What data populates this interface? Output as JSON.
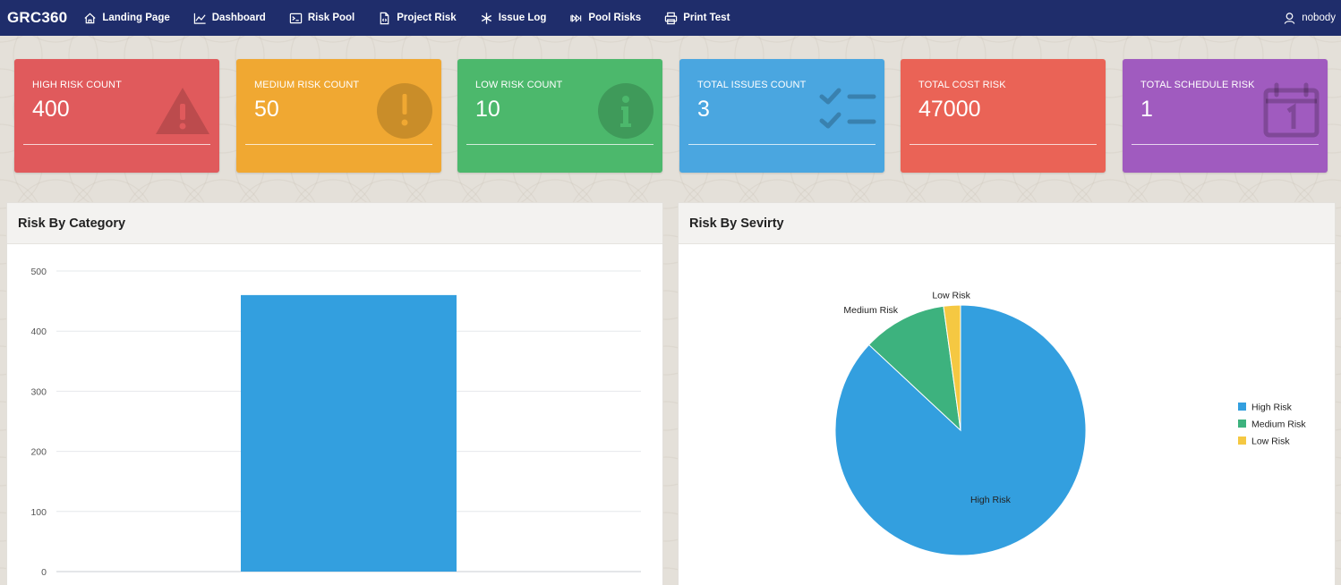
{
  "app": {
    "brand": "GRC360"
  },
  "nav": [
    {
      "label": "Landing Page",
      "icon": "home-icon"
    },
    {
      "label": "Dashboard",
      "icon": "line-chart-icon"
    },
    {
      "label": "Risk Pool",
      "icon": "terminal-icon"
    },
    {
      "label": "Project Risk",
      "icon": "file-icon"
    },
    {
      "label": "Issue Log",
      "icon": "asterisk-icon"
    },
    {
      "label": "Pool Risks",
      "icon": "skip-icon"
    },
    {
      "label": "Print Test",
      "icon": "printer-icon"
    }
  ],
  "user": {
    "name": "nobody",
    "icon": "user-icon"
  },
  "cards": [
    {
      "label": "HIGH RISK COUNT",
      "value": "400",
      "color": "#e05a5c",
      "icon": "warning-triangle-icon"
    },
    {
      "label": "MEDIUM RISK COUNT",
      "value": "50",
      "color": "#f0a832",
      "icon": "exclamation-circle-icon"
    },
    {
      "label": "LOW RISK COUNT",
      "value": "10",
      "color": "#4cb86c",
      "icon": "info-circle-icon"
    },
    {
      "label": "TOTAL ISSUES COUNT",
      "value": "3",
      "color": "#4aa6e0",
      "icon": "checklist-icon"
    },
    {
      "label": "TOTAL COST RISK",
      "value": "47000",
      "color": "#ea6356",
      "icon": ""
    },
    {
      "label": "TOTAL SCHEDULE RISK",
      "value": "1",
      "color": "#a05bbf",
      "icon": "calendar-icon"
    }
  ],
  "panels": {
    "category": {
      "title": "Risk By Category"
    },
    "severity": {
      "title": "Risk By Sevirty"
    }
  },
  "chart_data": [
    {
      "type": "bar",
      "title": "Risk By Category",
      "categories": [
        ""
      ],
      "values": [
        460
      ],
      "ylim": [
        0,
        500
      ],
      "yticks": [
        "0",
        "100",
        "200",
        "300",
        "400",
        "500"
      ],
      "grid": true,
      "color": "#339fdf"
    },
    {
      "type": "pie",
      "title": "Risk By Sevirty",
      "labels": [
        "High Risk",
        "Medium Risk",
        "Low Risk"
      ],
      "values": [
        400,
        50,
        10
      ],
      "colors": [
        "#339fdf",
        "#3db27e",
        "#f5c842"
      ],
      "legend": "right"
    }
  ]
}
